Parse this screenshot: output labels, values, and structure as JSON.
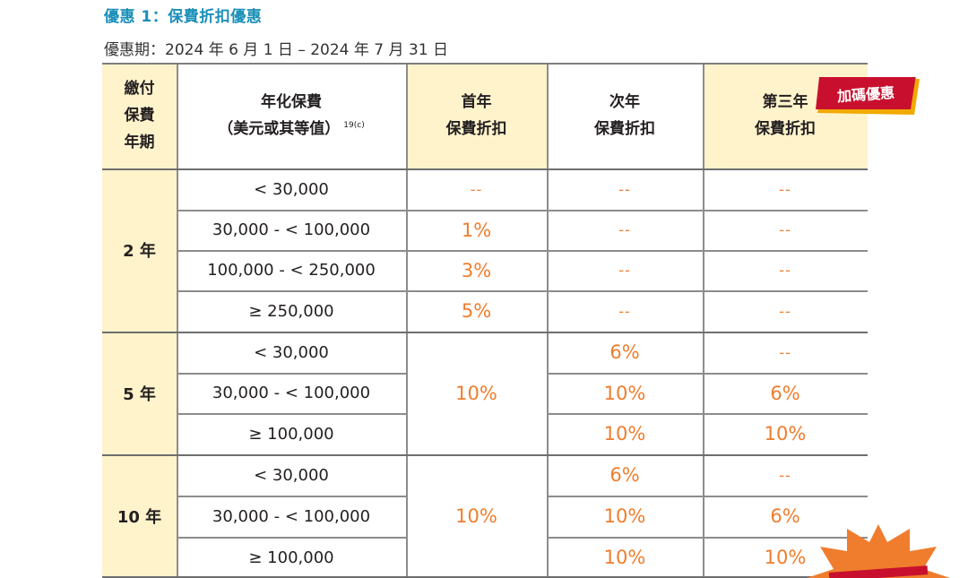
{
  "title": "優惠 1：保費折扣優惠",
  "period": "優惠期：2024 年 6 月 1 日 – 2024 年 7 月 31 日",
  "badge": "加碼優惠",
  "headers": {
    "term": [
      "繳付",
      "保費",
      "年期"
    ],
    "premium": [
      "年化保費",
      "（美元或其等值）"
    ],
    "premium_footnote": "19(c)",
    "first": [
      "首年",
      "保費折扣"
    ],
    "second": [
      "次年",
      "保費折扣"
    ],
    "third": [
      "第三年",
      "保費折扣"
    ]
  },
  "terms": [
    "2 年",
    "5 年",
    "10 年"
  ],
  "ranges": [
    "< 30,000",
    "30,000 - < 100,000",
    "100,000 - < 250,000",
    "≥ 250,000",
    "< 30,000",
    "30,000 - < 100,000",
    "≥ 100,000",
    "< 30,000",
    "30,000 - < 100,000",
    "≥ 100,000"
  ],
  "first_year": [
    "--",
    "1%",
    "3%",
    "5%",
    "10%",
    "10%"
  ],
  "second_year": [
    "--",
    "--",
    "--",
    "--",
    "6%",
    "10%",
    "10%",
    "6%",
    "10%",
    "10%"
  ],
  "third_year": [
    "--",
    "--",
    "--",
    "--",
    "--",
    "6%",
    "10%",
    "--",
    "6%",
    "10%"
  ],
  "colors": {
    "title": "#1a8fb9",
    "header_bg": "#fff3cc",
    "value": "#ef7d2d",
    "badge": "#c8102e",
    "badge_shadow": "#f2a900"
  }
}
